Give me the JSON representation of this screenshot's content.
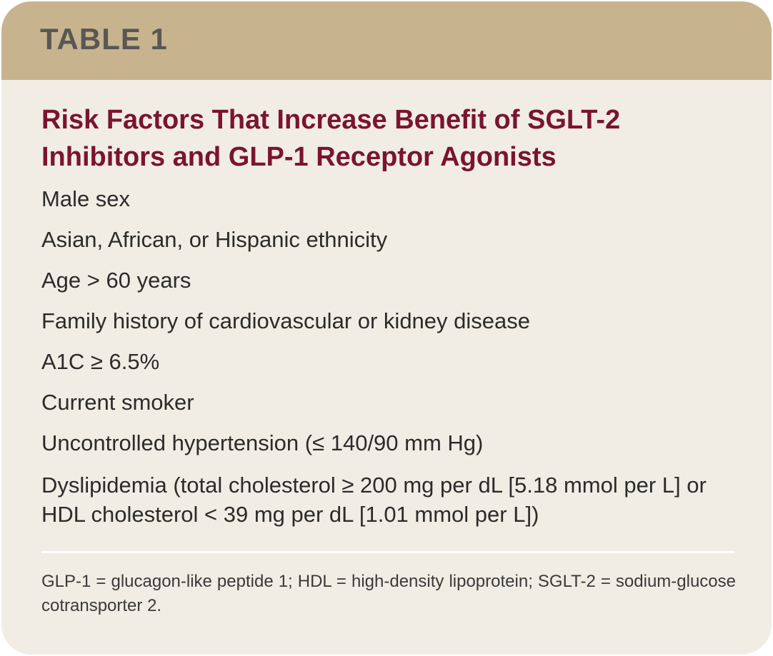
{
  "header": {
    "label": "TABLE 1"
  },
  "title": "Risk Factors That Increase Benefit of SGLT-2 Inhibitors and GLP-1 Receptor Agonists",
  "items": [
    "Male sex",
    "Asian, African, or Hispanic ethnicity",
    "Age > 60 years",
    "Family history of cardiovascular or kidney disease",
    "A1C ≥ 6.5%",
    "Current smoker",
    "Uncontrolled hypertension (≤ 140/90 mm Hg)",
    "Dyslipidemia (total cholesterol ≥ 200 mg per dL [5.18 mmol per L] or HDL cholesterol < 39 mg per dL [1.01 mmol per L])"
  ],
  "footnote": "GLP-1 = glucagon-like peptide 1; HDL = high-density lipoprotein; SGLT-2 = sodium-glucose cotransporter 2.",
  "colors": {
    "header_band": "#c7b48f",
    "card_background": "#f1ede4",
    "title_text": "#7a1430",
    "body_text": "#2b2b2b"
  }
}
